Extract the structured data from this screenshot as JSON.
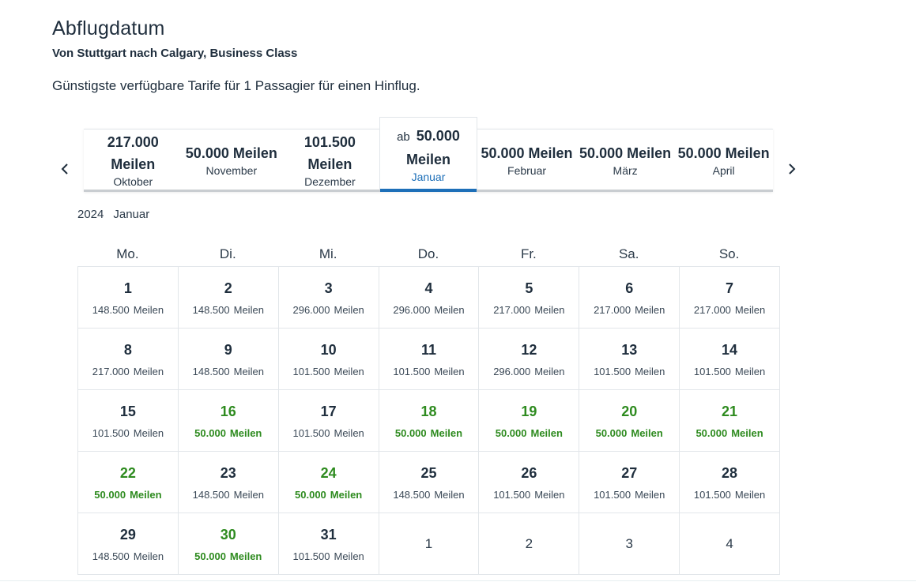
{
  "header": {
    "title": "Abflugdatum",
    "subtitle": "Von Stuttgart nach Calgary, Business Class",
    "note": "Günstigste verfügbare Tarife für 1 Passagier für einen Hinflug."
  },
  "month_strip": {
    "prefix": "ab",
    "months": [
      {
        "price": "217.000 Meilen",
        "name": "Oktober"
      },
      {
        "price": "50.000 Meilen",
        "name": "November"
      },
      {
        "price": "101.500 Meilen",
        "name": "Dezember"
      },
      {
        "price": "50.000 Meilen",
        "name": "Januar"
      },
      {
        "price": "50.000 Meilen",
        "name": "Februar"
      },
      {
        "price": "50.000 Meilen",
        "name": "März"
      },
      {
        "price": "50.000 Meilen",
        "name": "April"
      }
    ]
  },
  "calendar": {
    "year": "2024",
    "month": "Januar",
    "weekdays": [
      "Mo.",
      "Di.",
      "Mi.",
      "Do.",
      "Fr.",
      "Sa.",
      "So."
    ],
    "unit": "Meilen",
    "days": [
      {
        "d": "1",
        "p": "148.500"
      },
      {
        "d": "2",
        "p": "148.500"
      },
      {
        "d": "3",
        "p": "296.000"
      },
      {
        "d": "4",
        "p": "296.000"
      },
      {
        "d": "5",
        "p": "217.000"
      },
      {
        "d": "6",
        "p": "217.000"
      },
      {
        "d": "7",
        "p": "217.000"
      },
      {
        "d": "8",
        "p": "217.000"
      },
      {
        "d": "9",
        "p": "148.500"
      },
      {
        "d": "10",
        "p": "101.500"
      },
      {
        "d": "11",
        "p": "101.500"
      },
      {
        "d": "12",
        "p": "296.000"
      },
      {
        "d": "13",
        "p": "101.500"
      },
      {
        "d": "14",
        "p": "101.500"
      },
      {
        "d": "15",
        "p": "101.500"
      },
      {
        "d": "16",
        "p": "50.000"
      },
      {
        "d": "17",
        "p": "101.500"
      },
      {
        "d": "18",
        "p": "50.000"
      },
      {
        "d": "19",
        "p": "50.000"
      },
      {
        "d": "20",
        "p": "50.000"
      },
      {
        "d": "21",
        "p": "50.000"
      },
      {
        "d": "22",
        "p": "50.000"
      },
      {
        "d": "23",
        "p": "148.500"
      },
      {
        "d": "24",
        "p": "50.000"
      },
      {
        "d": "25",
        "p": "148.500"
      },
      {
        "d": "26",
        "p": "101.500"
      },
      {
        "d": "27",
        "p": "101.500"
      },
      {
        "d": "28",
        "p": "101.500"
      },
      {
        "d": "29",
        "p": "148.500"
      },
      {
        "d": "30",
        "p": "50.000"
      },
      {
        "d": "31",
        "p": "101.500"
      }
    ],
    "next_month_days": [
      "1",
      "2",
      "3",
      "4"
    ]
  },
  "colors": {
    "accent": "#1d6fb8",
    "cheapest": "#2e8b1f",
    "text": "#1f2e3d"
  }
}
